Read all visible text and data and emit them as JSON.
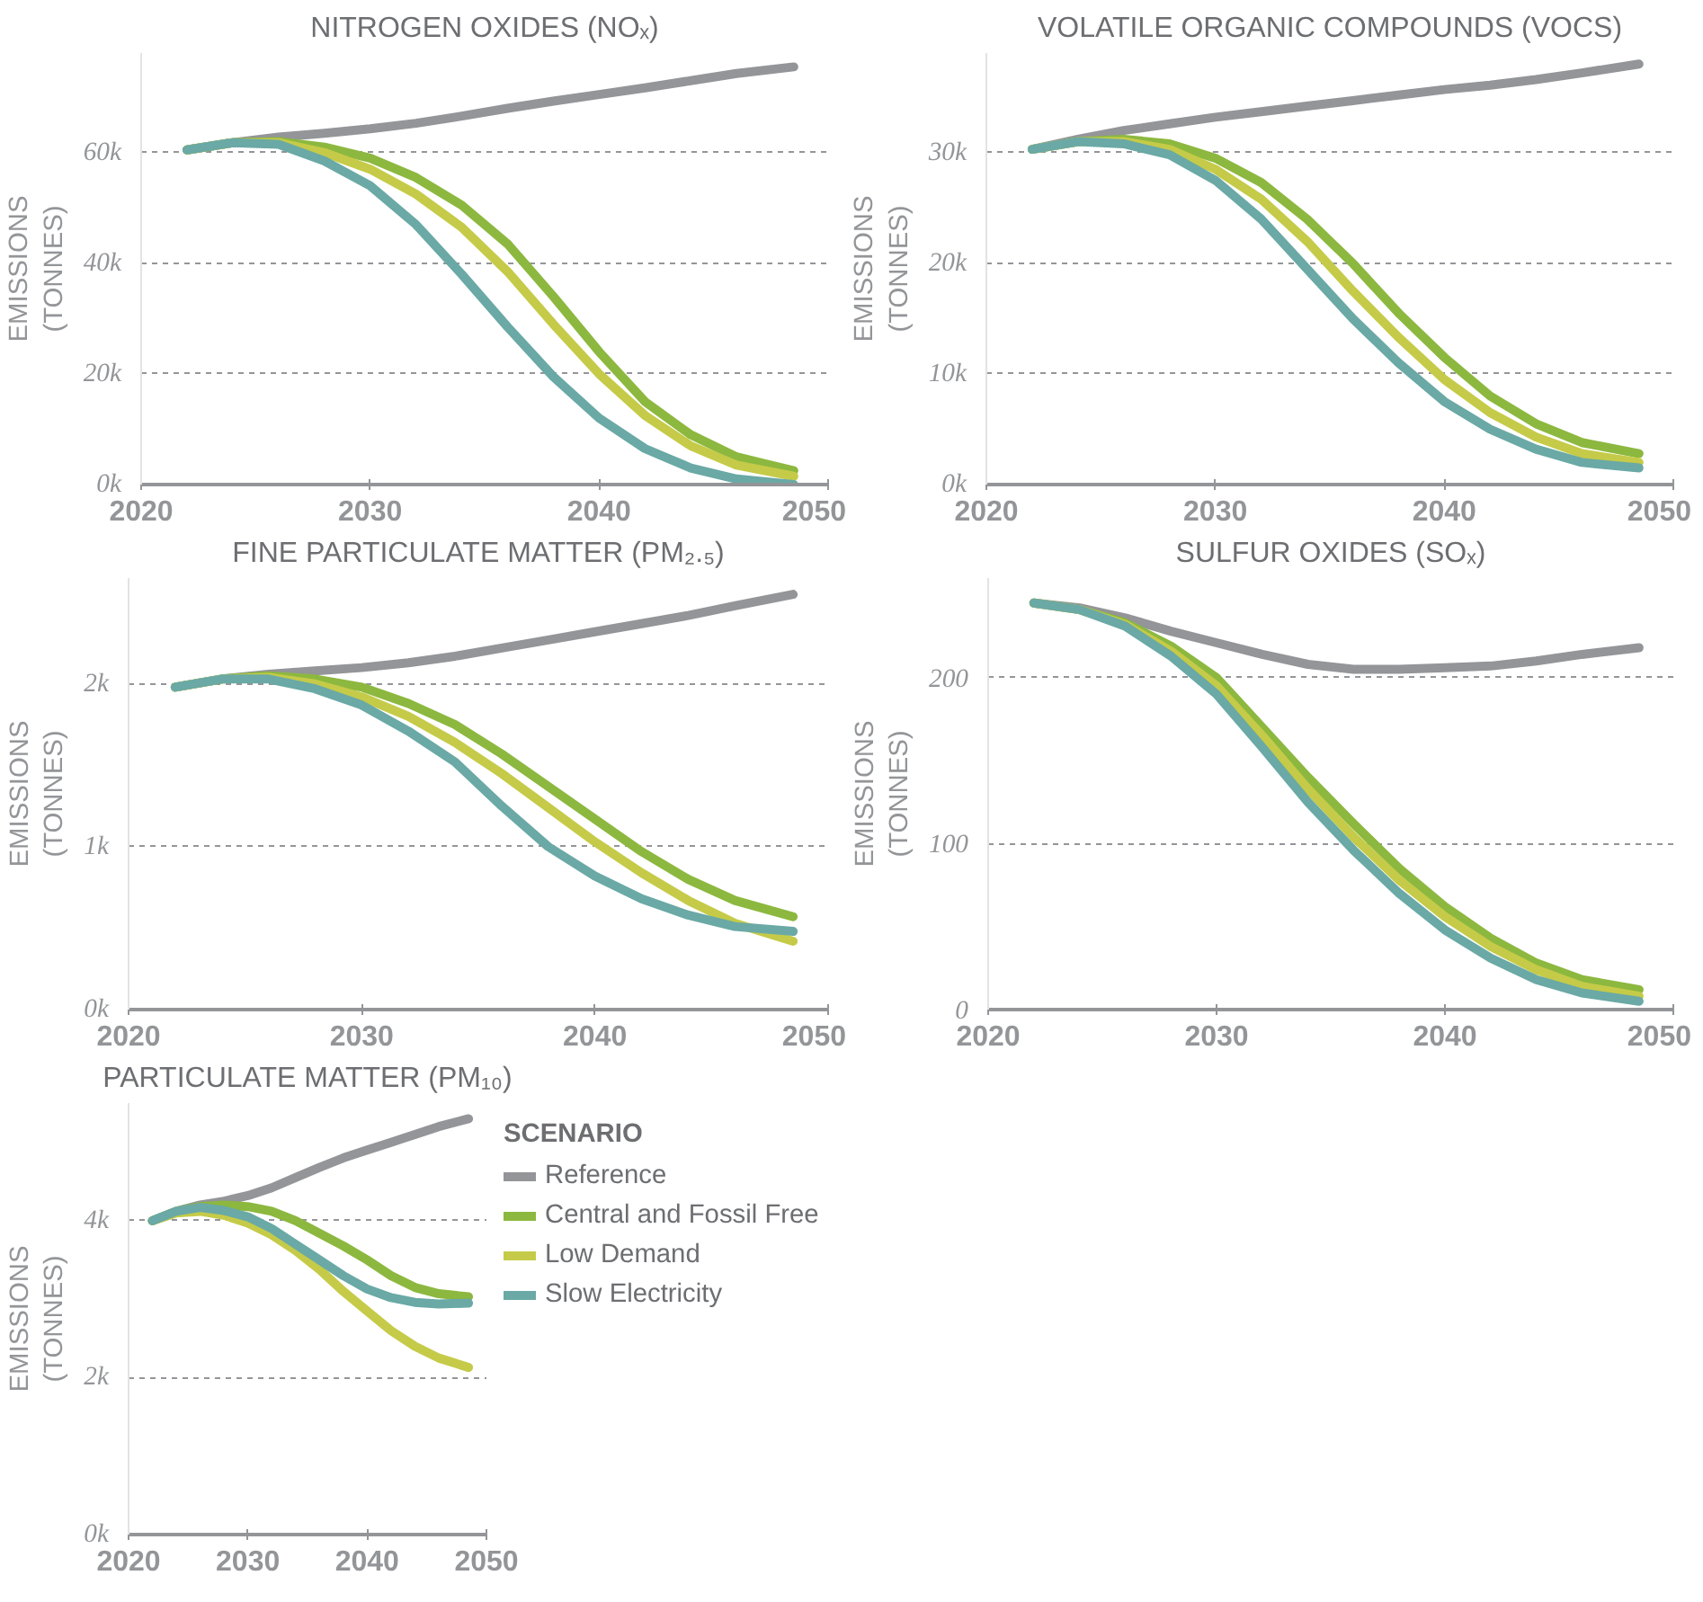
{
  "chart_data": [
    {
      "type": "line",
      "title": "NITROGEN OXIDES (NOₓ)",
      "ylabel": "EMISSIONS\n(TONNES)",
      "x": [
        2022,
        2024,
        2026,
        2028,
        2030,
        2032,
        2034,
        2036,
        2038,
        2040,
        2042,
        2044,
        2046,
        2048.5
      ],
      "xlim": [
        2020,
        2050
      ],
      "xticks": [
        2020,
        2030,
        2040,
        2050
      ],
      "ylim": [
        0,
        78000
      ],
      "yticks": [
        {
          "value": 0,
          "label": "0k"
        },
        {
          "value": 20000,
          "label": "20k"
        },
        {
          "value": 40000,
          "label": "40k"
        },
        {
          "value": 60000,
          "label": "60k"
        }
      ],
      "grid": "y",
      "line_style": "solid",
      "series": [
        {
          "color": "#939598",
          "values": [
            60500,
            61800,
            62800,
            63500,
            64300,
            65300,
            66600,
            68000,
            69300,
            70500,
            71700,
            73000,
            74300,
            75500
          ]
        },
        {
          "color": "#8cb83f",
          "values": [
            60500,
            61800,
            62000,
            61000,
            59000,
            55500,
            50500,
            43500,
            34000,
            24000,
            15000,
            9000,
            5000,
            2500
          ]
        },
        {
          "color": "#c5cb48",
          "values": [
            60500,
            61800,
            61800,
            60000,
            57000,
            52500,
            46500,
            38500,
            29000,
            20000,
            12500,
            7000,
            3500,
            1500
          ]
        },
        {
          "color": "#6aa9a5",
          "values": [
            60500,
            61800,
            61500,
            58500,
            54000,
            47000,
            38000,
            28500,
            19500,
            12000,
            6500,
            3000,
            1000,
            0
          ]
        }
      ]
    },
    {
      "type": "line",
      "title": "VOLATILE ORGANIC COMPOUNDS (VOCS)",
      "ylabel": "EMISSIONS\n(TONNES)",
      "x": [
        2022,
        2024,
        2026,
        2028,
        2030,
        2032,
        2034,
        2036,
        2038,
        2040,
        2042,
        2044,
        2046,
        2048.5
      ],
      "xlim": [
        2020,
        2050
      ],
      "xticks": [
        2020,
        2030,
        2040,
        2050
      ],
      "ylim": [
        0,
        39000
      ],
      "yticks": [
        {
          "value": 0,
          "label": "0k"
        },
        {
          "value": 10000,
          "label": "10k"
        },
        {
          "value": 20000,
          "label": "20k"
        },
        {
          "value": 30000,
          "label": "30k"
        }
      ],
      "grid": "y",
      "line_style": "solid",
      "series": [
        {
          "color": "#939598",
          "values": [
            30300,
            31200,
            32000,
            32600,
            33200,
            33700,
            34200,
            34700,
            35200,
            35700,
            36100,
            36600,
            37200,
            38000
          ]
        },
        {
          "color": "#8cb83f",
          "values": [
            30300,
            31000,
            31200,
            30800,
            29500,
            27300,
            24000,
            20000,
            15500,
            11500,
            8000,
            5500,
            3800,
            2800
          ]
        },
        {
          "color": "#c5cb48",
          "values": [
            30300,
            31000,
            31000,
            30300,
            28500,
            25800,
            22000,
            17500,
            13300,
            9500,
            6500,
            4300,
            2800,
            2000
          ]
        },
        {
          "color": "#6aa9a5",
          "values": [
            30300,
            31000,
            30800,
            29800,
            27500,
            24000,
            19500,
            15000,
            11000,
            7500,
            5000,
            3200,
            2000,
            1500
          ]
        }
      ]
    },
    {
      "type": "line",
      "title": "FINE PARTICULATE MATTER (PM₂.₅)",
      "ylabel": "EMISSIONS\n(TONNES)",
      "x": [
        2022,
        2024,
        2026,
        2028,
        2030,
        2032,
        2034,
        2036,
        2038,
        2040,
        2042,
        2044,
        2046,
        2048.5
      ],
      "xlim": [
        2020,
        2050
      ],
      "xticks": [
        2020,
        2030,
        2040,
        2050
      ],
      "ylim": [
        0,
        2650
      ],
      "yticks": [
        {
          "value": 0,
          "label": "0k"
        },
        {
          "value": 1000,
          "label": "1k"
        },
        {
          "value": 2000,
          "label": "2k"
        }
      ],
      "grid": "y",
      "line_style": "solid",
      "series": [
        {
          "color": "#939598",
          "values": [
            1980,
            2030,
            2060,
            2080,
            2100,
            2130,
            2170,
            2220,
            2270,
            2320,
            2370,
            2420,
            2480,
            2550
          ]
        },
        {
          "color": "#8cb83f",
          "values": [
            1980,
            2030,
            2050,
            2030,
            1980,
            1880,
            1750,
            1570,
            1370,
            1170,
            970,
            800,
            670,
            570
          ]
        },
        {
          "color": "#c5cb48",
          "values": [
            1980,
            2030,
            2040,
            2000,
            1920,
            1800,
            1640,
            1450,
            1240,
            1030,
            840,
            670,
            530,
            420
          ]
        },
        {
          "color": "#6aa9a5",
          "values": [
            1980,
            2030,
            2030,
            1970,
            1870,
            1710,
            1520,
            1250,
            1000,
            820,
            680,
            580,
            510,
            480
          ]
        }
      ]
    },
    {
      "type": "line",
      "title": "SULFUR OXIDES (SOₓ)",
      "ylabel": "EMISSIONS\n(TONNES)",
      "x": [
        2022,
        2024,
        2026,
        2028,
        2030,
        2032,
        2034,
        2036,
        2038,
        2040,
        2042,
        2044,
        2046,
        2048.5
      ],
      "xlim": [
        2020,
        2050
      ],
      "xticks": [
        2020,
        2030,
        2040,
        2050
      ],
      "ylim": [
        0,
        260
      ],
      "yticks": [
        0,
        100,
        200
      ],
      "grid": "y",
      "line_style": "solid",
      "series": [
        {
          "color": "#939598",
          "values": [
            245,
            242,
            236,
            228,
            221,
            214,
            208,
            205,
            205,
            206,
            207,
            210,
            214,
            218
          ]
        },
        {
          "color": "#8cb83f",
          "values": [
            245,
            241,
            233,
            219,
            200,
            170,
            140,
            112,
            85,
            62,
            43,
            28,
            18,
            12
          ]
        },
        {
          "color": "#c5cb48",
          "values": [
            245,
            241,
            232,
            216,
            195,
            165,
            133,
            104,
            78,
            56,
            38,
            24,
            14,
            8
          ]
        },
        {
          "color": "#6aa9a5",
          "values": [
            245,
            241,
            231,
            213,
            190,
            158,
            125,
            96,
            70,
            48,
            31,
            18,
            10,
            5
          ]
        }
      ]
    },
    {
      "type": "line",
      "title": "PARTICULATE MATTER (PM₁₀)",
      "ylabel": "EMISSIONS\n(TONNES)",
      "x": [
        2022,
        2024,
        2026,
        2028,
        2030,
        2032,
        2034,
        2036,
        2038,
        2040,
        2042,
        2044,
        2046,
        2048.5
      ],
      "xlim": [
        2020,
        2050
      ],
      "xticks": [
        2020,
        2030,
        2040,
        2050
      ],
      "ylim": [
        0,
        5500
      ],
      "yticks": [
        {
          "value": 0,
          "label": "0k"
        },
        {
          "value": 2000,
          "label": "2k"
        },
        {
          "value": 4000,
          "label": "4k"
        }
      ],
      "grid": "y",
      "line_style": "solid",
      "legend": "right",
      "legend_title": "SCENARIO",
      "series": [
        {
          "name": "Reference",
          "color": "#939598",
          "values": [
            4000,
            4120,
            4200,
            4250,
            4320,
            4420,
            4550,
            4680,
            4800,
            4900,
            5000,
            5100,
            5200,
            5300
          ]
        },
        {
          "name": "Central and Fossil Free",
          "color": "#8cb83f",
          "values": [
            4000,
            4120,
            4180,
            4200,
            4180,
            4120,
            4000,
            3840,
            3680,
            3500,
            3300,
            3150,
            3070,
            3030
          ]
        },
        {
          "name": "Low Demand",
          "color": "#c5cb48",
          "values": [
            4000,
            4100,
            4120,
            4070,
            3970,
            3820,
            3620,
            3380,
            3100,
            2850,
            2600,
            2400,
            2250,
            2130
          ]
        },
        {
          "name": "Slow Electricity",
          "color": "#6aa9a5",
          "values": [
            4000,
            4120,
            4170,
            4130,
            4050,
            3900,
            3700,
            3500,
            3300,
            3130,
            3020,
            2960,
            2940,
            2950
          ]
        }
      ]
    }
  ]
}
